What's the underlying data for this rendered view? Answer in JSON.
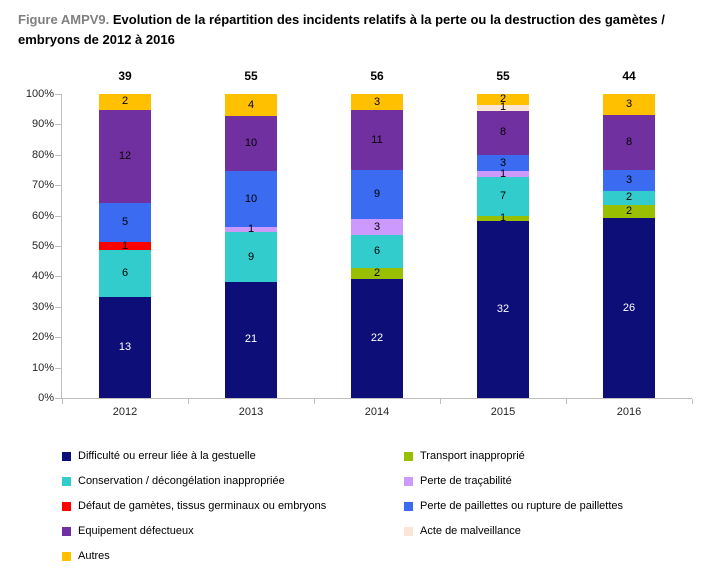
{
  "title": {
    "prefix": "Figure AMPV9.",
    "main": "Evolution de la répartition des incidents relatifs à la perte ou la destruction des gamètes / embryons de 2012 à 2016"
  },
  "chart_data": {
    "type": "bar",
    "variant": "100%-stacked-column",
    "title": "Evolution de la répartition des incidents relatifs à la perte ou la destruction des gamètes / embryons de 2012 à 2016",
    "xlabel": "",
    "ylabel": "",
    "ylim": [
      "0%",
      "100%"
    ],
    "grid": false,
    "legend_position": "bottom-two-columns",
    "categories": [
      "2012",
      "2013",
      "2014",
      "2015",
      "2016"
    ],
    "totals": [
      39,
      55,
      56,
      55,
      44
    ],
    "y_ticks": [
      "0%",
      "10%",
      "20%",
      "30%",
      "40%",
      "50%",
      "60%",
      "70%",
      "80%",
      "90%",
      "100%"
    ],
    "series": [
      {
        "name": "Difficulté ou erreur liée à la gestuelle",
        "color": "#0E0E78",
        "label_color": "#ffffff",
        "values": [
          13,
          21,
          22,
          32,
          26
        ]
      },
      {
        "name": "Transport inapproprié",
        "color": "#99C000",
        "label_color": "#000000",
        "values": [
          0,
          0,
          2,
          1,
          2
        ]
      },
      {
        "name": "Conservation / décongélation inappropriée",
        "color": "#33CCCC",
        "label_color": "#000000",
        "values": [
          6,
          9,
          6,
          7,
          2
        ]
      },
      {
        "name": "Perte de traçabilité",
        "color": "#CC99FF",
        "label_color": "#000000",
        "values": [
          0,
          1,
          3,
          1,
          0
        ]
      },
      {
        "name": "Défaut de gamètes, tissus germinaux ou embryons",
        "color": "#FF0000",
        "label_color": "#000000",
        "values": [
          1,
          0,
          0,
          0,
          0
        ]
      },
      {
        "name": "Perte de paillettes ou rupture de paillettes",
        "color": "#3A6BF0",
        "label_color": "#000000",
        "values": [
          5,
          10,
          9,
          3,
          3
        ]
      },
      {
        "name": "Equipement défectueux",
        "color": "#7030A0",
        "label_color": "#000000",
        "values": [
          12,
          10,
          11,
          8,
          8
        ]
      },
      {
        "name": "Acte de malveillance",
        "color": "#FBE5D6",
        "label_color": "#000000",
        "values": [
          0,
          0,
          0,
          1,
          0
        ]
      },
      {
        "name": "Autres",
        "color": "#FFC000",
        "label_color": "#000000",
        "values": [
          2,
          4,
          3,
          2,
          3
        ]
      }
    ]
  }
}
